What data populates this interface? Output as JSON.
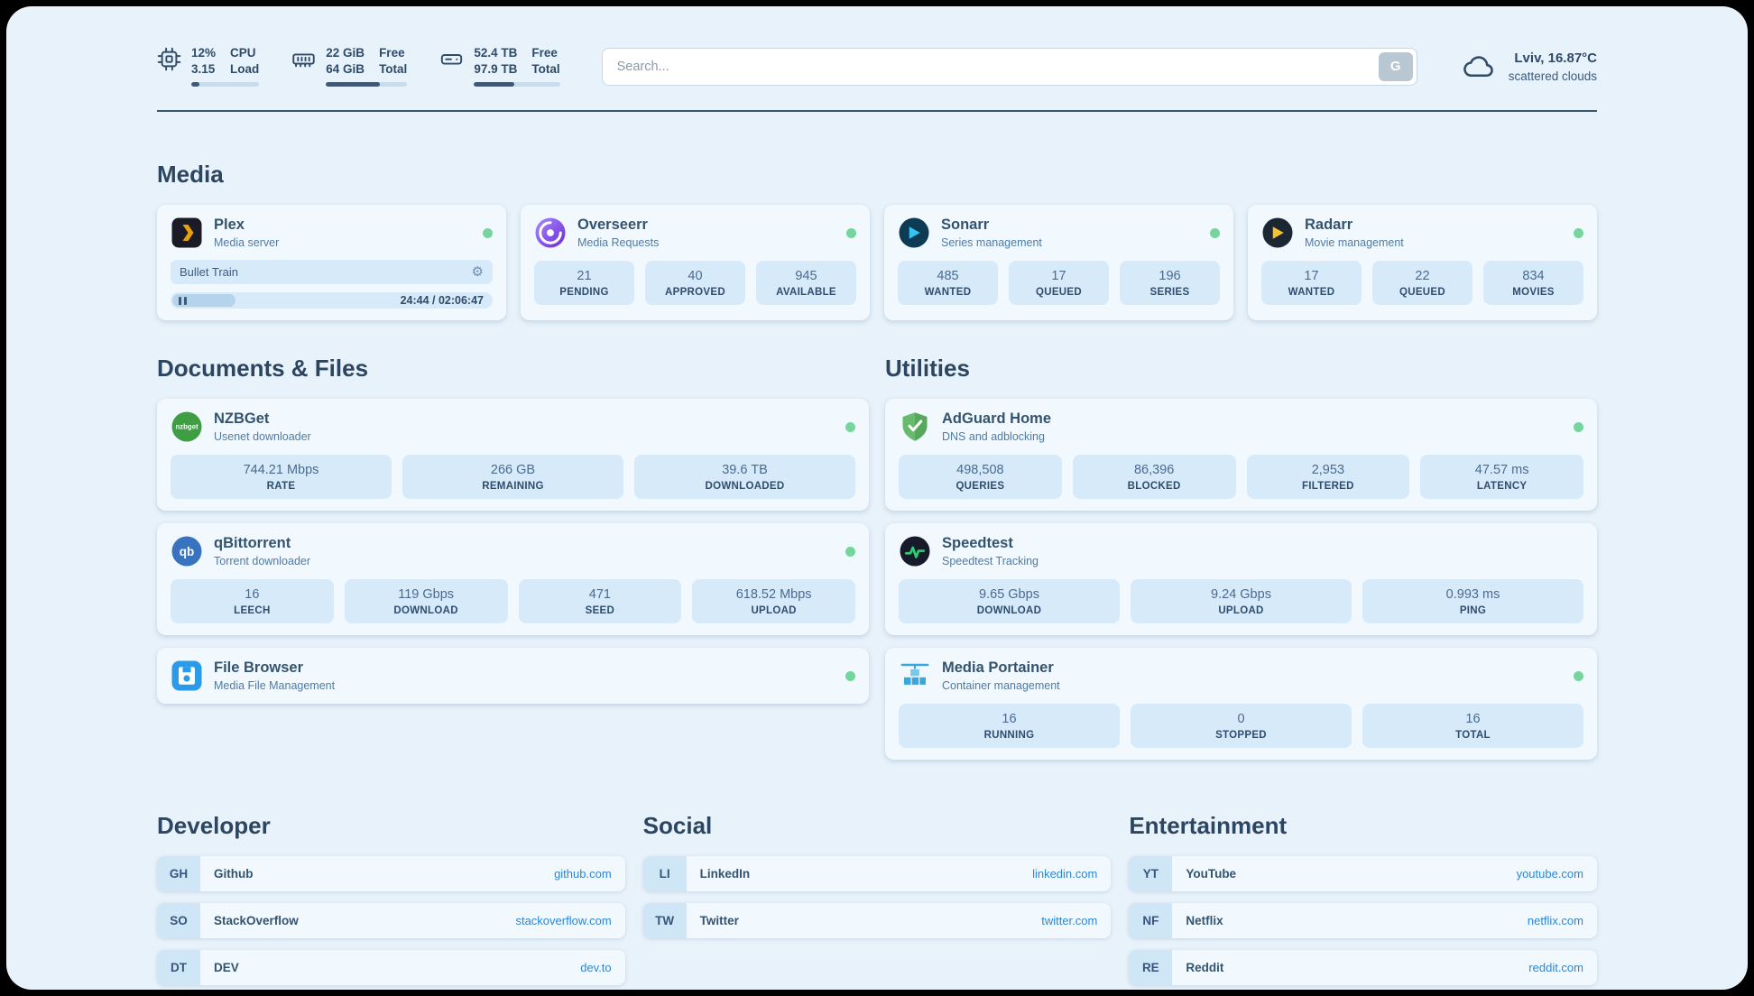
{
  "colors": {
    "background": "#e8f2fa",
    "card": "#f2f9fe",
    "stat_box": "#d7eafa",
    "status_green": "#74d69c",
    "link_blue": "#2e86d4",
    "text_navy": "#2f4b68"
  },
  "icons": {
    "gear": "⚙"
  },
  "topbar": {
    "cpu": {
      "value_top": "12%",
      "value_bottom": "3.15",
      "label_top": "CPU",
      "label_bottom": "Load",
      "progress_pct": 12
    },
    "ram": {
      "value_top": "22 GiB",
      "value_bottom": "64 GiB",
      "label_top": "Free",
      "label_bottom": "Total",
      "progress_pct": 66
    },
    "disk": {
      "value_top": "52.4 TB",
      "value_bottom": "97.9 TB",
      "label_top": "Free",
      "label_bottom": "Total",
      "progress_pct": 47
    },
    "search": {
      "placeholder": "Search...",
      "button_label": "G"
    },
    "weather": {
      "location": "Lviv, 16.87°C",
      "condition": "scattered clouds"
    }
  },
  "sections": {
    "media": {
      "title": "Media"
    },
    "documents": {
      "title": "Documents & Files"
    },
    "utilities": {
      "title": "Utilities"
    }
  },
  "services": {
    "plex": {
      "name": "Plex",
      "subtitle": "Media server",
      "now_playing": "Bullet Train",
      "time": "24:44 / 02:06:47",
      "progress_pct": 19.5
    },
    "overseerr": {
      "name": "Overseerr",
      "subtitle": "Media Requests",
      "stats": [
        {
          "value": "21",
          "label": "PENDING"
        },
        {
          "value": "40",
          "label": "APPROVED"
        },
        {
          "value": "945",
          "label": "AVAILABLE"
        }
      ]
    },
    "sonarr": {
      "name": "Sonarr",
      "subtitle": "Series management",
      "stats": [
        {
          "value": "485",
          "label": "WANTED"
        },
        {
          "value": "17",
          "label": "QUEUED"
        },
        {
          "value": "196",
          "label": "SERIES"
        }
      ]
    },
    "radarr": {
      "name": "Radarr",
      "subtitle": "Movie management",
      "stats": [
        {
          "value": "17",
          "label": "WANTED"
        },
        {
          "value": "22",
          "label": "QUEUED"
        },
        {
          "value": "834",
          "label": "MOVIES"
        }
      ]
    },
    "nzbget": {
      "name": "NZBGet",
      "subtitle": "Usenet downloader",
      "icon_text": "nzbget",
      "stats": [
        {
          "value": "744.21 Mbps",
          "label": "RATE"
        },
        {
          "value": "266 GB",
          "label": "REMAINING"
        },
        {
          "value": "39.6 TB",
          "label": "DOWNLOADED"
        }
      ]
    },
    "qbittorrent": {
      "name": "qBittorrent",
      "subtitle": "Torrent downloader",
      "icon_text": "qb",
      "stats": [
        {
          "value": "16",
          "label": "LEECH"
        },
        {
          "value": "119 Gbps",
          "label": "DOWNLOAD"
        },
        {
          "value": "471",
          "label": "SEED"
        },
        {
          "value": "618.52 Mbps",
          "label": "UPLOAD"
        }
      ]
    },
    "filebrowser": {
      "name": "File Browser",
      "subtitle": "Media File Management"
    },
    "adguard": {
      "name": "AdGuard Home",
      "subtitle": "DNS and adblocking",
      "stats": [
        {
          "value": "498,508",
          "label": "QUERIES"
        },
        {
          "value": "86,396",
          "label": "BLOCKED"
        },
        {
          "value": "2,953",
          "label": "FILTERED"
        },
        {
          "value": "47.57 ms",
          "label": "LATENCY"
        }
      ]
    },
    "speedtest": {
      "name": "Speedtest",
      "subtitle": "Speedtest Tracking",
      "stats": [
        {
          "value": "9.65 Gbps",
          "label": "DOWNLOAD"
        },
        {
          "value": "9.24 Gbps",
          "label": "UPLOAD"
        },
        {
          "value": "0.993 ms",
          "label": "PING"
        }
      ]
    },
    "portainer": {
      "name": "Media Portainer",
      "subtitle": "Container management",
      "stats": [
        {
          "value": "16",
          "label": "RUNNING"
        },
        {
          "value": "0",
          "label": "STOPPED"
        },
        {
          "value": "16",
          "label": "TOTAL"
        }
      ]
    }
  },
  "bookmarks": [
    {
      "title": "Developer",
      "items": [
        {
          "abbr": "GH",
          "name": "Github",
          "url": "github.com"
        },
        {
          "abbr": "SO",
          "name": "StackOverflow",
          "url": "stackoverflow.com"
        },
        {
          "abbr": "DT",
          "name": "DEV",
          "url": "dev.to"
        }
      ]
    },
    {
      "title": "Social",
      "items": [
        {
          "abbr": "LI",
          "name": "LinkedIn",
          "url": "linkedin.com"
        },
        {
          "abbr": "TW",
          "name": "Twitter",
          "url": "twitter.com"
        }
      ]
    },
    {
      "title": "Entertainment",
      "items": [
        {
          "abbr": "YT",
          "name": "YouTube",
          "url": "youtube.com"
        },
        {
          "abbr": "NF",
          "name": "Netflix",
          "url": "netflix.com"
        },
        {
          "abbr": "RE",
          "name": "Reddit",
          "url": "reddit.com"
        }
      ]
    }
  ]
}
